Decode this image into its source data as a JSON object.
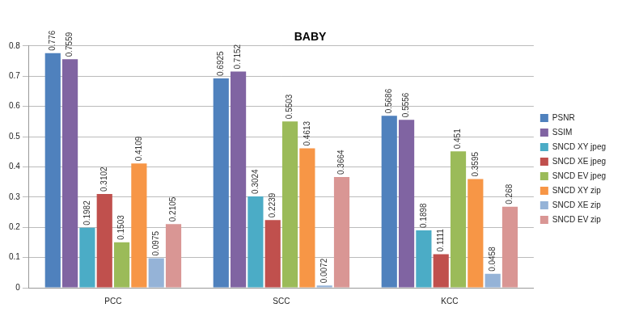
{
  "chart_data": {
    "type": "bar",
    "title": "BABY",
    "categories": [
      "PCC",
      "SCC",
      "KCC"
    ],
    "series": [
      {
        "name": "PSNR",
        "color": "#4f81bd",
        "values": [
          0.776,
          0.6925,
          0.5686
        ]
      },
      {
        "name": "SSIM",
        "color": "#8064a2",
        "values": [
          0.7559,
          0.7152,
          0.5556
        ]
      },
      {
        "name": "SNCD XY jpeg",
        "color": "#4bacc6",
        "values": [
          0.1982,
          0.3024,
          0.1898
        ]
      },
      {
        "name": "SNCD XE jpeg",
        "color": "#c0504d",
        "values": [
          0.3102,
          0.2239,
          0.1111
        ]
      },
      {
        "name": "SNCD EV jpeg",
        "color": "#9bbb59",
        "values": [
          0.1503,
          0.5503,
          0.451
        ]
      },
      {
        "name": "SNCD XY zip",
        "color": "#f79646",
        "values": [
          0.4109,
          0.4613,
          0.3595
        ]
      },
      {
        "name": "SNCD XE zip",
        "color": "#95b3d7",
        "values": [
          0.0975,
          0.0072,
          0.0458
        ]
      },
      {
        "name": "SNCD EV zip",
        "color": "#d99694",
        "values": [
          0.2105,
          0.3664,
          0.268
        ]
      }
    ],
    "ylim": [
      0,
      0.8
    ],
    "yticks": [
      0,
      0.1,
      0.2,
      0.3,
      0.4,
      0.5,
      0.6,
      0.7,
      0.8
    ],
    "grid": true,
    "legend": "right",
    "data_labels": true
  }
}
